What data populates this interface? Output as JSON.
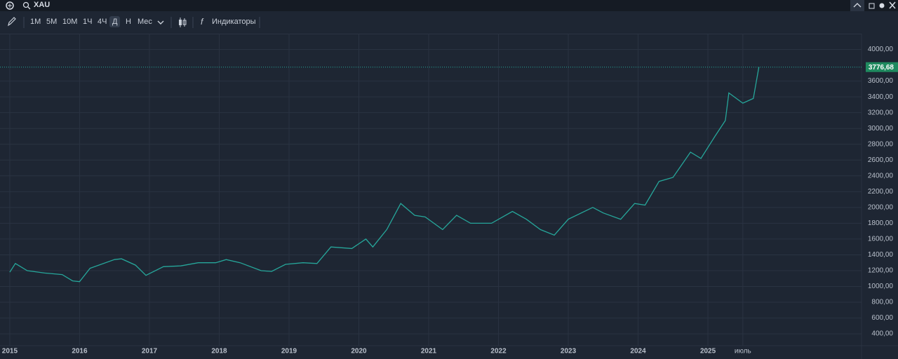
{
  "toolbar": {
    "symbol": "XAU",
    "timeframes": [
      "1М",
      "5М",
      "10М",
      "1Ч",
      "4Ч",
      "Д",
      "Н",
      "Мес"
    ],
    "active_timeframe": "Д",
    "indicators": "Индикаторы"
  },
  "chart_data": {
    "type": "line",
    "color": "#26a69a",
    "grid": true,
    "x": [
      2015.0,
      2015.08,
      2015.25,
      2015.5,
      2015.75,
      2015.9,
      2016.0,
      2016.15,
      2016.5,
      2016.6,
      2016.8,
      2016.95,
      2017.2,
      2017.45,
      2017.7,
      2017.95,
      2018.1,
      2018.3,
      2018.6,
      2018.75,
      2018.95,
      2019.2,
      2019.4,
      2019.6,
      2019.9,
      2020.1,
      2020.2,
      2020.4,
      2020.6,
      2020.8,
      2020.95,
      2021.2,
      2021.4,
      2021.6,
      2021.9,
      2022.2,
      2022.4,
      2022.6,
      2022.8,
      2023.0,
      2023.35,
      2023.5,
      2023.75,
      2023.95,
      2024.1,
      2024.3,
      2024.5,
      2024.75,
      2024.9,
      2025.1,
      2025.25,
      2025.3,
      2025.5,
      2025.65,
      2025.73
    ],
    "values": [
      1180,
      1290,
      1200,
      1170,
      1150,
      1070,
      1060,
      1230,
      1340,
      1350,
      1270,
      1140,
      1250,
      1260,
      1300,
      1300,
      1340,
      1300,
      1200,
      1190,
      1280,
      1300,
      1290,
      1500,
      1480,
      1600,
      1500,
      1720,
      2050,
      1900,
      1880,
      1720,
      1900,
      1800,
      1800,
      1950,
      1850,
      1720,
      1650,
      1850,
      2000,
      1930,
      1850,
      2050,
      2030,
      2330,
      2380,
      2700,
      2620,
      2900,
      3100,
      3450,
      3320,
      3380,
      3776.68
    ],
    "last_price": {
      "value": 3776.68,
      "label": "3776,68"
    },
    "xlim": [
      2014.86,
      2027.2
    ],
    "xticks": [
      2015,
      2016,
      2017,
      2018,
      2019,
      2020,
      2021,
      2022,
      2023,
      2024,
      2025,
      {
        "value": 2025.5,
        "label": "июль"
      }
    ],
    "ylim": [
      250,
      4200
    ],
    "yticks": [
      {
        "value": 400,
        "label": "400,00"
      },
      {
        "value": 600,
        "label": "600,00"
      },
      {
        "value": 800,
        "label": "800,00"
      },
      {
        "value": 1000,
        "label": "1000,00"
      },
      {
        "value": 1200,
        "label": "1200,00"
      },
      {
        "value": 1400,
        "label": "1400,00"
      },
      {
        "value": 1600,
        "label": "1600,00"
      },
      {
        "value": 1800,
        "label": "1800,00"
      },
      {
        "value": 2000,
        "label": "2000,00"
      },
      {
        "value": 2200,
        "label": "2200,00"
      },
      {
        "value": 2400,
        "label": "2400,00"
      },
      {
        "value": 2600,
        "label": "2600,00"
      },
      {
        "value": 2800,
        "label": "2800,00"
      },
      {
        "value": 3000,
        "label": "3000,00"
      },
      {
        "value": 3200,
        "label": "3200,00"
      },
      {
        "value": 3400,
        "label": "3400,00"
      },
      {
        "value": 3600,
        "label": "3600,00"
      },
      {
        "value": 4000,
        "label": "4000,00"
      }
    ]
  }
}
